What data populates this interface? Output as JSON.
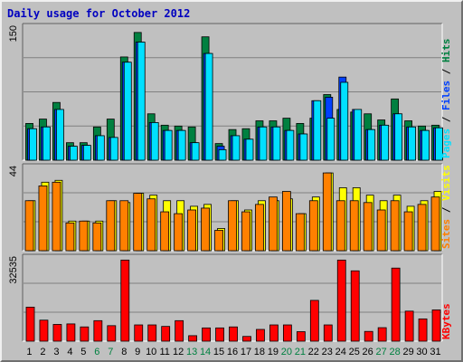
{
  "chart_data": {
    "type": "bar",
    "title": "Daily usage for October 2012",
    "colors": {
      "background": "#c0c0c0",
      "title": "#0000c0",
      "hits": "#008040",
      "files": "#0040ff",
      "pages": "#00e0ff",
      "visits": "#ffff00",
      "sites": "#ff8000",
      "kbytes": "#ff0000",
      "weekend_label": "#008040",
      "weekday_label": "#000000",
      "grid": "#808080"
    },
    "categories": [
      "1",
      "2",
      "3",
      "4",
      "5",
      "6",
      "7",
      "8",
      "9",
      "10",
      "11",
      "12",
      "13",
      "14",
      "15",
      "16",
      "17",
      "18",
      "19",
      "20",
      "21",
      "22",
      "23",
      "24",
      "25",
      "26",
      "27",
      "28",
      "29",
      "30",
      "31"
    ],
    "weekend_days": [
      "6",
      "7",
      "13",
      "14",
      "20",
      "21",
      "27",
      "28"
    ],
    "panels": [
      {
        "id": "hits-files-pages",
        "ymax_label": "150",
        "ymax": 150,
        "axis_labels": [
          "Pages",
          "Files",
          "Hits"
        ],
        "series": [
          {
            "name": "Hits",
            "values": [
              42,
              47,
              66,
              20,
              20,
              38,
              47,
              118,
              146,
              53,
              40,
              39,
              38,
              141,
              19,
              35,
              36,
              45,
              45,
              48,
              42,
              48,
              75,
              58,
              55,
              53,
              46,
              70,
              45,
              39,
              40
            ]
          },
          {
            "name": "Files",
            "values": [
              36,
              38,
              58,
              16,
              17,
              28,
              26,
              112,
              135,
              43,
              34,
              34,
              20,
              122,
              16,
              28,
              24,
              38,
              38,
              34,
              30,
              68,
              72,
              95,
              58,
              35,
              40,
              53,
              38,
              34,
              37
            ]
          },
          {
            "name": "Pages",
            "values": [
              36,
              38,
              58,
              16,
              17,
              28,
              26,
              112,
              135,
              43,
              34,
              34,
              20,
              122,
              12,
              28,
              24,
              38,
              38,
              34,
              30,
              68,
              48,
              89,
              58,
              35,
              40,
              53,
              38,
              34,
              37
            ]
          }
        ]
      },
      {
        "id": "visits-sites",
        "ymax_label": "44",
        "ymax": 44,
        "axis_labels": [
          "Sites",
          "Visits"
        ],
        "series": [
          {
            "name": "Visits",
            "values": [
              27,
              37,
              38,
              16,
              16,
              16,
              27,
              26,
              31,
              30,
              27,
              27,
              24,
              25,
              12,
              27,
              22,
              27,
              27,
              28,
              20,
              29,
              42,
              34,
              34,
              30,
              27,
              30,
              24,
              27,
              32
            ]
          },
          {
            "name": "Sites",
            "values": [
              27,
              35,
              37,
              15,
              16,
              15,
              27,
              27,
              31,
              28,
              21,
              20,
              22,
              23,
              11,
              27,
              21,
              25,
              29,
              32,
              20,
              27,
              42,
              27,
              27,
              26,
              22,
              27,
              21,
              25,
              29
            ]
          }
        ]
      },
      {
        "id": "kbytes",
        "ymax_label": "32535",
        "ymax": 32535,
        "axis_labels": [
          "KBytes"
        ],
        "series": [
          {
            "name": "KBytes",
            "values": [
              13600,
              8400,
              6700,
              6900,
              5700,
              8200,
              6200,
              32400,
              6500,
              6500,
              5900,
              8200,
              2200,
              5300,
              5300,
              5700,
              1900,
              4700,
              6500,
              6500,
              3800,
              16300,
              6500,
              32400,
              28100,
              3900,
              5400,
              29200,
              12000,
              8900,
              12500
            ]
          }
        ]
      }
    ]
  }
}
